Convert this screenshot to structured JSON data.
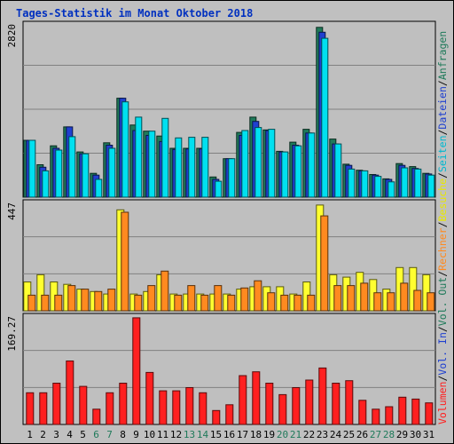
{
  "chart_data": {
    "type": "bar",
    "title": "Tages-Statistik im Monat Oktober 2018",
    "days": [
      {
        "label": "1",
        "weekend": false
      },
      {
        "label": "2",
        "weekend": false
      },
      {
        "label": "3",
        "weekend": false
      },
      {
        "label": "4",
        "weekend": false
      },
      {
        "label": "5",
        "weekend": false
      },
      {
        "label": "6",
        "weekend": true
      },
      {
        "label": "7",
        "weekend": true
      },
      {
        "label": "8",
        "weekend": false
      },
      {
        "label": "9",
        "weekend": false
      },
      {
        "label": "10",
        "weekend": false
      },
      {
        "label": "11",
        "weekend": false
      },
      {
        "label": "12",
        "weekend": false
      },
      {
        "label": "13",
        "weekend": true
      },
      {
        "label": "14",
        "weekend": true
      },
      {
        "label": "15",
        "weekend": false
      },
      {
        "label": "16",
        "weekend": false
      },
      {
        "label": "17",
        "weekend": false
      },
      {
        "label": "18",
        "weekend": false
      },
      {
        "label": "19",
        "weekend": false
      },
      {
        "label": "20",
        "weekend": true
      },
      {
        "label": "21",
        "weekend": true
      },
      {
        "label": "22",
        "weekend": false
      },
      {
        "label": "23",
        "weekend": false
      },
      {
        "label": "24",
        "weekend": false
      },
      {
        "label": "25",
        "weekend": false
      },
      {
        "label": "26",
        "weekend": false
      },
      {
        "label": "27",
        "weekend": true
      },
      {
        "label": "28",
        "weekend": true
      },
      {
        "label": "29",
        "weekend": false
      },
      {
        "label": "30",
        "weekend": false
      },
      {
        "label": "31",
        "weekend": false
      }
    ],
    "panels": [
      {
        "id": "requests",
        "ymax_label": "2820",
        "ylim": [
          0,
          2820
        ],
        "series": [
          {
            "name": "Anfragen",
            "color": "#1f7a5a",
            "values": [
              930,
              530,
              840,
              1150,
              740,
              390,
              890,
              1620,
              1180,
              1080,
              1000,
              800,
              800,
              800,
              330,
              630,
              1060,
              1310,
              1100,
              750,
              900,
              1110,
              2780,
              950,
              540,
              440,
              370,
              300,
              550,
              500,
              390
            ]
          },
          {
            "name": "Dateien",
            "color": "#2040d0",
            "values": [
              930,
              490,
              800,
              1150,
              710,
              360,
              850,
              1620,
              1090,
              1010,
              910,
              780,
              790,
              790,
              290,
              630,
              1010,
              1240,
              1090,
              740,
              850,
              1050,
              2700,
              870,
              520,
              430,
              360,
              290,
              520,
              470,
              380
            ]
          },
          {
            "name": "Seiten",
            "color": "#00e0f0",
            "values": [
              930,
              430,
              770,
              990,
              710,
              290,
              800,
              1560,
              1310,
              1080,
              1290,
              970,
              980,
              980,
              260,
              630,
              1090,
              1140,
              1110,
              740,
              840,
              1050,
              2600,
              870,
              460,
              430,
              340,
              250,
              480,
              460,
              360
            ]
          }
        ]
      },
      {
        "id": "visits",
        "ymax_label": "447",
        "ylim": [
          0,
          447
        ],
        "series": [
          {
            "name": "Besuche",
            "color": "#ffff30",
            "values": [
              120,
              150,
              120,
              110,
              90,
              80,
              70,
              420,
              70,
              80,
              150,
              70,
              70,
              70,
              70,
              70,
              90,
              100,
              100,
              100,
              70,
              120,
              440,
              150,
              140,
              160,
              130,
              90,
              180,
              180,
              150
            ]
          },
          {
            "name": "Rechner",
            "color": "#ff8a20",
            "values": [
              65,
              65,
              65,
              105,
              90,
              80,
              90,
              410,
              65,
              105,
              165,
              65,
              105,
              65,
              105,
              65,
              95,
              125,
              75,
              65,
              65,
              65,
              395,
              105,
              105,
              115,
              75,
              75,
              115,
              85,
              75
            ]
          }
        ]
      },
      {
        "id": "volume",
        "ymax_label": "169.27",
        "ylim": [
          0,
          169.27
        ],
        "series": [
          {
            "name": "Volumen",
            "color": "#ff2020",
            "values": [
              50,
              50,
              65,
              100,
              60,
              24,
              50,
              65,
              168,
              82,
              53,
              53,
              58,
              50,
              22,
              31,
              77,
              83,
              65,
              47,
              58,
              70,
              89,
              65,
              69,
              38,
              24,
              28,
              43,
              40,
              34
            ]
          }
        ]
      }
    ],
    "legend_right": [
      {
        "text": "Anfragen",
        "color": "#1f7a5a"
      },
      {
        "text": "Dateien",
        "color": "#2040d0"
      },
      {
        "text": "Seiten",
        "color": "#00b8d0"
      },
      {
        "text": "Besuche",
        "color": "#e8e800"
      },
      {
        "text": "Rechner",
        "color": "#ff8a20"
      },
      {
        "text": "Vol. Out",
        "color": "#1f7a5a"
      },
      {
        "text": "Vol. In",
        "color": "#2040d0"
      },
      {
        "text": "Volumen",
        "color": "#ff2020"
      }
    ],
    "separator": "/",
    "title_color": "#0030c0",
    "weekday_label_color": "#000000",
    "weekend_label_color": "#1f7a5a"
  }
}
